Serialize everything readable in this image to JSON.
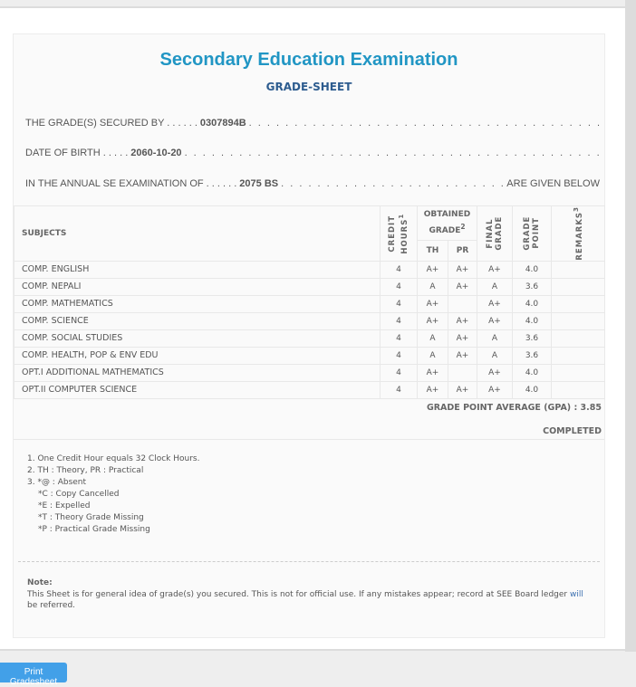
{
  "header": {
    "title": "Secondary Education Examination",
    "subtitle": "GRADE-SHEET"
  },
  "info": {
    "secured_by_label": "THE GRADE(S) SECURED BY . . . . . .",
    "symbol_no": "0307894B",
    "dob_label": "DATE OF BIRTH . . . . .",
    "dob": "2060-10-20",
    "exam_label": "IN THE ANNUAL SE EXAMINATION OF . . . . . .",
    "exam_year": "2075 BS",
    "given_below": "ARE GIVEN BELOW"
  },
  "table": {
    "headers": {
      "subjects": "SUBJECTS",
      "credit_hours": "CREDIT HOURS",
      "credit_sup": "1",
      "obtained_grade": "OBTAINED GRADE",
      "obtained_sup": "2",
      "th": "TH",
      "pr": "PR",
      "final_grade": "FINAL GRADE",
      "grade_point": "GRADE POINT",
      "remarks": "REMARKS",
      "remarks_sup": "3"
    },
    "rows": [
      {
        "subject": "COMP. ENGLISH",
        "credit": "4",
        "th": "A+",
        "pr": "A+",
        "final": "A+",
        "gp": "4.0",
        "remarks": ""
      },
      {
        "subject": "COMP. NEPALI",
        "credit": "4",
        "th": "A",
        "pr": "A+",
        "final": "A",
        "gp": "3.6",
        "remarks": ""
      },
      {
        "subject": "COMP. MATHEMATICS",
        "credit": "4",
        "th": "A+",
        "pr": "",
        "final": "A+",
        "gp": "4.0",
        "remarks": ""
      },
      {
        "subject": "COMP. SCIENCE",
        "credit": "4",
        "th": "A+",
        "pr": "A+",
        "final": "A+",
        "gp": "4.0",
        "remarks": ""
      },
      {
        "subject": "COMP. SOCIAL STUDIES",
        "credit": "4",
        "th": "A",
        "pr": "A+",
        "final": "A",
        "gp": "3.6",
        "remarks": ""
      },
      {
        "subject": "COMP. HEALTH, POP & ENV EDU",
        "credit": "4",
        "th": "A",
        "pr": "A+",
        "final": "A",
        "gp": "3.6",
        "remarks": ""
      },
      {
        "subject": "OPT.I ADDITIONAL MATHEMATICS",
        "credit": "4",
        "th": "A+",
        "pr": "",
        "final": "A+",
        "gp": "4.0",
        "remarks": ""
      },
      {
        "subject": "OPT.II COMPUTER SCIENCE",
        "credit": "4",
        "th": "A+",
        "pr": "A+",
        "final": "A+",
        "gp": "4.0",
        "remarks": ""
      }
    ]
  },
  "gpa": "GRADE POINT AVERAGE (GPA) : 3.85",
  "status": "COMPLETED",
  "footnotes": [
    "1. One Credit Hour equals 32 Clock Hours.",
    "2. TH : Theory, PR : Practical",
    "3. *@ : Absent",
    "*C : Copy Cancelled",
    "*E : Expelled",
    "*T : Theory Grade Missing",
    "*P : Practical Grade Missing"
  ],
  "note": {
    "label": "Note:",
    "text": "This Sheet is for general idea of grade(s) you secured. This is not for official use. If any mistakes appear; record at SEE Board ledger",
    "link": "will",
    "tail": "be referred."
  },
  "print_button": "Print Gradesheet"
}
